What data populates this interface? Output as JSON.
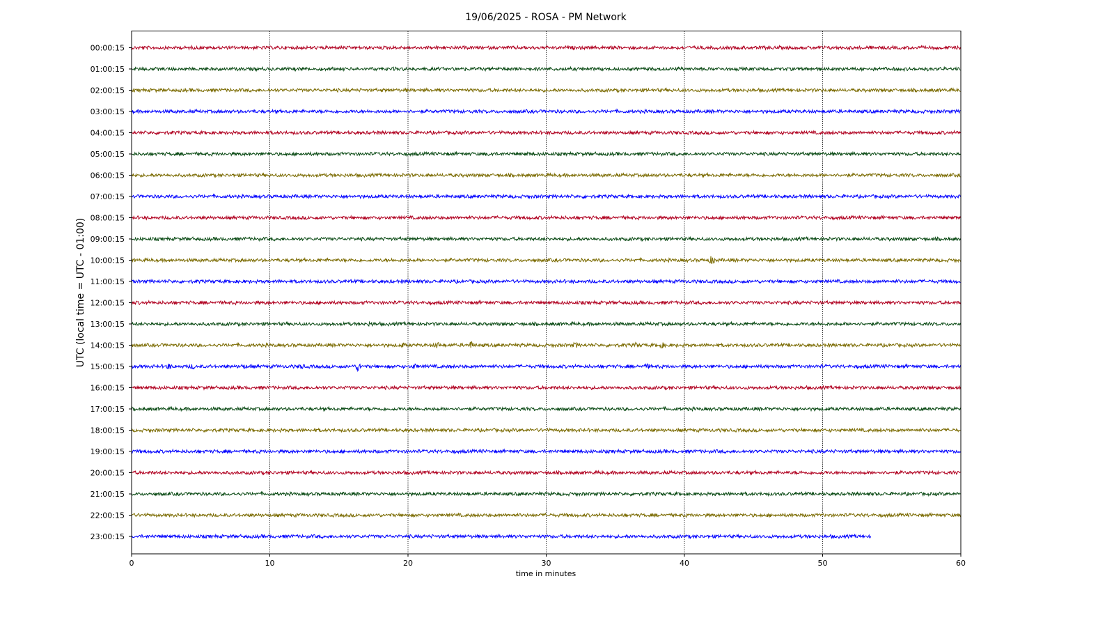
{
  "chart_data": {
    "type": "line",
    "title": "19/06/2025 - ROSA - PM Network",
    "xlabel": "time in minutes",
    "ylabel": "UTC (local time = UTC - 01:00)",
    "xlim": [
      0,
      60
    ],
    "x_ticks": [
      "0",
      "10",
      "20",
      "30",
      "40",
      "50",
      "60"
    ],
    "x_tick_values": [
      0,
      10,
      20,
      30,
      40,
      50,
      60
    ],
    "grid": "vertical dotted",
    "legend": "none",
    "color_cycle": [
      "#b00020",
      "#0a4a14",
      "#7a6a00",
      "#0000ff"
    ],
    "traces": [
      {
        "label": "00:00:15",
        "end_minute": 60
      },
      {
        "label": "01:00:15",
        "end_minute": 60
      },
      {
        "label": "02:00:15",
        "end_minute": 60
      },
      {
        "label": "03:00:15",
        "end_minute": 60
      },
      {
        "label": "04:00:15",
        "end_minute": 60
      },
      {
        "label": "05:00:15",
        "end_minute": 60,
        "events": [
          {
            "minute": 26.0,
            "amplitude": 3
          },
          {
            "minute": 28.6,
            "amplitude": 2
          }
        ]
      },
      {
        "label": "06:00:15",
        "end_minute": 60
      },
      {
        "label": "07:00:15",
        "end_minute": 60,
        "events": [
          {
            "minute": 32.8,
            "amplitude": 2
          }
        ]
      },
      {
        "label": "08:00:15",
        "end_minute": 60
      },
      {
        "label": "09:00:15",
        "end_minute": 60
      },
      {
        "label": "10:00:15",
        "end_minute": 60,
        "events": [
          {
            "minute": 42.0,
            "amplitude": 6
          }
        ]
      },
      {
        "label": "11:00:15",
        "end_minute": 60
      },
      {
        "label": "12:00:15",
        "end_minute": 60
      },
      {
        "label": "13:00:15",
        "end_minute": 60,
        "events": [
          {
            "minute": 17.3,
            "amplitude": 3
          }
        ]
      },
      {
        "label": "14:00:15",
        "end_minute": 60,
        "events": [
          {
            "minute": 19.6,
            "amplitude": 3
          },
          {
            "minute": 22.1,
            "amplitude": 4
          },
          {
            "minute": 24.6,
            "amplitude": 5
          },
          {
            "minute": 32.1,
            "amplitude": 3
          },
          {
            "minute": 36.5,
            "amplitude": 3
          },
          {
            "minute": 38.4,
            "amplitude": 3
          }
        ]
      },
      {
        "label": "15:00:15",
        "end_minute": 60,
        "events": [
          {
            "minute": 2.7,
            "amplitude": 4
          },
          {
            "minute": 4.4,
            "amplitude": 3
          },
          {
            "minute": 8.1,
            "amplitude": 3
          },
          {
            "minute": 12.3,
            "amplitude": 3
          },
          {
            "minute": 16.4,
            "amplitude": 6
          },
          {
            "minute": 20.5,
            "amplitude": 3
          },
          {
            "minute": 37.3,
            "amplitude": 3
          }
        ]
      },
      {
        "label": "16:00:15",
        "end_minute": 60
      },
      {
        "label": "17:00:15",
        "end_minute": 60
      },
      {
        "label": "18:00:15",
        "end_minute": 60
      },
      {
        "label": "19:00:15",
        "end_minute": 60
      },
      {
        "label": "20:00:15",
        "end_minute": 60
      },
      {
        "label": "21:00:15",
        "end_minute": 60
      },
      {
        "label": "22:00:15",
        "end_minute": 60
      },
      {
        "label": "23:00:15",
        "end_minute": 53.5
      }
    ]
  }
}
